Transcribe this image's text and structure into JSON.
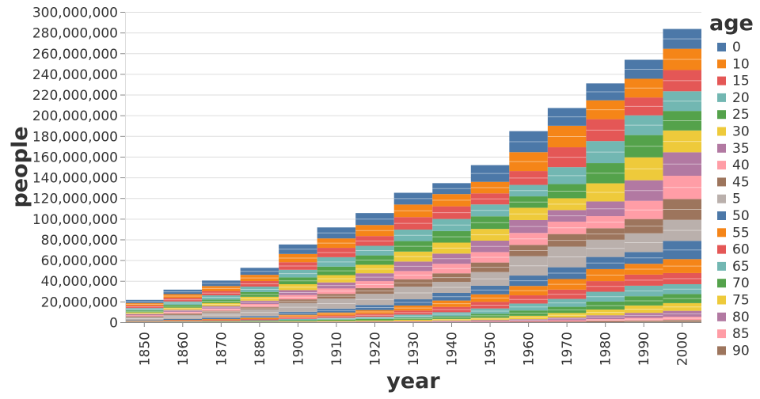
{
  "chart_data": {
    "type": "bar",
    "stacked": true,
    "title": "",
    "xlabel": "year",
    "ylabel": "people",
    "ylim": [
      0,
      300000000
    ],
    "yticks": [
      "0",
      "20,000,000",
      "40,000,000",
      "60,000,000",
      "80,000,000",
      "100,000,000",
      "120,000,000",
      "140,000,000",
      "160,000,000",
      "180,000,000",
      "200,000,000",
      "220,000,000",
      "240,000,000",
      "260,000,000",
      "280,000,000",
      "300,000,000"
    ],
    "grid": true,
    "legend": {
      "title": "age",
      "placement": "right"
    },
    "categories": [
      "1850",
      "1860",
      "1870",
      "1880",
      "1900",
      "1910",
      "1920",
      "1930",
      "1940",
      "1950",
      "1960",
      "1970",
      "1980",
      "1990",
      "2000"
    ],
    "series": [
      {
        "name": "0",
        "color": "#4c78a8",
        "values": [
          2994880,
          4319350,
          5335100,
          6769430,
          9170628,
          10631893,
          11573230,
          11368104,
          10579577,
          16163571,
          20341653,
          17163518,
          16348254,
          18354443,
          19176000
        ]
      },
      {
        "name": "10",
        "color": "#f58518",
        "values": [
          2557564,
          3736880,
          4757700,
          6007860,
          7996917,
          9113082,
          10641137,
          12160020,
          11827282,
          11117622,
          18242908,
          20803208,
          18271424,
          18099179,
          20549000
        ]
      },
      {
        "name": "15",
        "color": "#e45756",
        "values": [
          2373328,
          3355540,
          4194850,
          5377870,
          7302640,
          9050548,
          9430555,
          12069560,
          12254765,
          10725052,
          13379436,
          19214906,
          21124540,
          17291018,
          20528000
        ]
      },
      {
        "name": "20",
        "color": "#72b7b2",
        "values": [
          2208112,
          3179610,
          4063800,
          5285810,
          7353830,
          9103270,
          9279101,
          11119420,
          11626011,
          11476850,
          11094924,
          16376836,
          21318980,
          19070640,
          19017000
        ]
      },
      {
        "name": "25",
        "color": "#54a24b",
        "values": [
          1931110,
          2804740,
          3331200,
          4531270,
          6600380,
          8212094,
          9057628,
          10147110,
          11231010,
          12177940,
          10993278,
          13707030,
          19531888,
          21520316,
          18868000
        ]
      },
      {
        "name": "30",
        "color": "#eeca3b",
        "values": [
          1545160,
          2213760,
          2932040,
          3739200,
          5686720,
          7071920,
          8240910,
          9608290,
          10570190,
          11363100,
          11898282,
          11395584,
          17512616,
          22125580,
          21090000
        ]
      },
      {
        "name": "35",
        "color": "#b279a2",
        "values": [
          1250230,
          1918470,
          2460040,
          3260810,
          4758850,
          5841416,
          7542648,
          9200470,
          9886470,
          11034210,
          12449080,
          11184948,
          14219072,
          19937588,
          22712000
        ]
      },
      {
        "name": "40",
        "color": "#ff9da6",
        "values": [
          1042190,
          1596350,
          2164730,
          2813140,
          4167320,
          5211880,
          6706780,
          7920510,
          9212480,
          10100380,
          11587570,
          12003094,
          11703590,
          17573500,
          22450000
        ]
      },
      {
        "name": "45",
        "color": "#9d755d",
        "values": [
          848090,
          1315000,
          1595140,
          2219000,
          3428000,
          4547600,
          5638020,
          7131820,
          8280140,
          9208660,
          10817390,
          12126920,
          11065244,
          13757536,
          20159000
        ]
      },
      {
        "name": "5",
        "color": "#bab0ac",
        "values": [
          2781656,
          3918690,
          5154050,
          6378160,
          8553670,
          9709090,
          10736740,
          12251270,
          10645410,
          13236610,
          18781320,
          19984808,
          16703226,
          18138270,
          20298000
        ]
      },
      {
        "name": "50",
        "color": "#4c78a8",
        "values": [
          666560,
          998700,
          1327800,
          1852580,
          2932850,
          3751670,
          4925440,
          6035330,
          7353060,
          8312300,
          10072470,
          11372240,
          11713760,
          11345536,
          17670000
        ]
      },
      {
        "name": "55",
        "color": "#f58518",
        "values": [
          468670,
          702450,
          960550,
          1331640,
          2167490,
          2926480,
          3530040,
          4794000,
          6201530,
          7233360,
          9047770,
          10218040,
          11620508,
          10482760,
          13487000
        ]
      },
      {
        "name": "60",
        "color": "#e45756",
        "values": [
          382590,
          576900,
          803480,
          1130110,
          1866360,
          2303460,
          3007950,
          3988780,
          5123040,
          6418740,
          7962500,
          9007830,
          10263780,
          10744636,
          10744000
        ]
      },
      {
        "name": "65",
        "color": "#72b7b2",
        "values": [
          236580,
          366310,
          504540,
          752950,
          1271320,
          1654060,
          2066160,
          2931460,
          3855990,
          5184530,
          6676770,
          7652750,
          9520620,
          10153130,
          9516000
        ]
      },
      {
        "name": "70",
        "color": "#54a24b",
        "values": [
          152170,
          236150,
          336130,
          521320,
          883880,
          1146100,
          1436700,
          2063060,
          2667400,
          3776160,
          5132990,
          5946600,
          7664576,
          8945010,
          8788000
        ]
      },
      {
        "name": "75",
        "color": "#eeca3b",
        "values": [
          82440,
          137380,
          199990,
          316440,
          544990,
          734390,
          904820,
          1280360,
          1658590,
          2291300,
          3300620,
          4381730,
          5587896,
          7128580,
          7453000
        ]
      },
      {
        "name": "80",
        "color": "#b279a2",
        "values": [
          40450,
          69860,
          110450,
          171880,
          289260,
          391390,
          484940,
          647250,
          880400,
          1227970,
          1749730,
          2618880,
          3625140,
          4827150,
          5695000
        ]
      },
      {
        "name": "85",
        "color": "#ff9da6",
        "values": [
          14770,
          28220,
          40170,
          74310,
          121080,
          161410,
          206550,
          287060,
          399920,
          553860,
          787200,
          1253310,
          1854270,
          2545370,
          3120000
        ]
      },
      {
        "name": "90",
        "color": "#9d755d",
        "values": [
          5830,
          12990,
          16870,
          33730,
          56210,
          73200,
          94140,
          122950,
          182550,
          249760,
          382030,
          657640,
          1207950,
          1667410,
          2178000
        ]
      }
    ]
  }
}
